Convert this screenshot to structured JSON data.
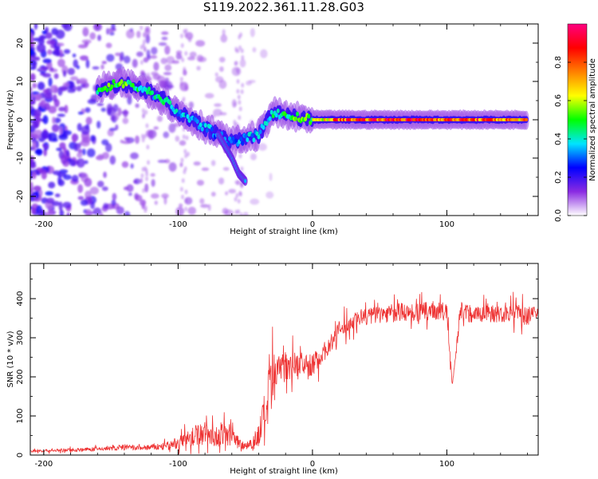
{
  "title": "S119.2022.361.11.28.G03",
  "chart_data": [
    {
      "type": "heatmap",
      "xlabel": "Height of straight line (km)",
      "ylabel": "Frequency (Hz)",
      "xlim": [
        -210,
        168
      ],
      "ylim": [
        -25,
        25
      ],
      "xticks": [
        -200,
        -100,
        0,
        100
      ],
      "yticks": [
        -20,
        -10,
        0,
        10,
        20
      ],
      "colorbar": {
        "label": "Normalized spectral amplitude",
        "range": [
          0,
          1
        ],
        "ticks": [
          0.0,
          0.2,
          0.4,
          0.6,
          0.8
        ],
        "tick_labels": [
          "0.0",
          "0.2",
          "0.4",
          "0.6",
          "0.8"
        ],
        "colormap": [
          "#ffffff",
          "#8a2be2",
          "#0000ff",
          "#00e5ff",
          "#00ff00",
          "#ffff00",
          "#ff8000",
          "#ff0000",
          "#ff0080"
        ]
      },
      "ridge": [
        {
          "x": -160,
          "y": 8,
          "amp": 0.45
        },
        {
          "x": -150,
          "y": 9,
          "amp": 0.5
        },
        {
          "x": -140,
          "y": 9.5,
          "amp": 0.5
        },
        {
          "x": -130,
          "y": 8.5,
          "amp": 0.45
        },
        {
          "x": -120,
          "y": 7,
          "amp": 0.4
        },
        {
          "x": -110,
          "y": 5,
          "amp": 0.4
        },
        {
          "x": -100,
          "y": 2,
          "amp": 0.35
        },
        {
          "x": -90,
          "y": 0,
          "amp": 0.35
        },
        {
          "x": -80,
          "y": -2,
          "amp": 0.35
        },
        {
          "x": -70,
          "y": -4,
          "amp": 0.3
        },
        {
          "x": -60,
          "y": -6,
          "amp": 0.3
        },
        {
          "x": -50,
          "y": -5,
          "amp": 0.35
        },
        {
          "x": -40,
          "y": -4,
          "amp": 0.35
        },
        {
          "x": -30,
          "y": 2,
          "amp": 0.4
        },
        {
          "x": -20,
          "y": 1,
          "amp": 0.45
        },
        {
          "x": -10,
          "y": 0.5,
          "amp": 0.5
        },
        {
          "x": 0,
          "y": 0,
          "amp": 0.55
        },
        {
          "x": 20,
          "y": 0,
          "amp": 0.8
        },
        {
          "x": 40,
          "y": 0,
          "amp": 0.85
        },
        {
          "x": 60,
          "y": 0,
          "amp": 0.85
        },
        {
          "x": 80,
          "y": 0,
          "amp": 0.85
        },
        {
          "x": 100,
          "y": 0,
          "amp": 0.8
        },
        {
          "x": 120,
          "y": 0,
          "amp": 0.8
        },
        {
          "x": 140,
          "y": 0,
          "amp": 0.75
        },
        {
          "x": 160,
          "y": 0,
          "amp": 0.7
        }
      ],
      "branch": [
        {
          "x": -70,
          "y": -4
        },
        {
          "x": -65,
          "y": -7
        },
        {
          "x": -60,
          "y": -10
        },
        {
          "x": -55,
          "y": -14
        },
        {
          "x": -50,
          "y": -16
        }
      ]
    },
    {
      "type": "line",
      "xlabel": "Height of straight line (km)",
      "ylabel": "SNR (10 * v/v)",
      "xlim": [
        -210,
        168
      ],
      "ylim": [
        0,
        490
      ],
      "xticks": [
        -200,
        -100,
        0,
        100
      ],
      "yticks": [
        0,
        100,
        200,
        300,
        400
      ],
      "color": "#ee3333",
      "x": [
        -210,
        -190,
        -170,
        -150,
        -140,
        -130,
        -120,
        -110,
        -100,
        -95,
        -90,
        -85,
        -80,
        -75,
        -70,
        -65,
        -60,
        -55,
        -50,
        -45,
        -40,
        -35,
        -30,
        -25,
        -20,
        -15,
        -10,
        -5,
        0,
        5,
        10,
        15,
        20,
        25,
        30,
        35,
        40,
        50,
        60,
        70,
        80,
        90,
        100,
        104,
        110,
        120,
        130,
        140,
        150,
        160,
        168
      ],
      "y": [
        10,
        12,
        14,
        17,
        20,
        18,
        20,
        22,
        30,
        40,
        45,
        55,
        55,
        50,
        45,
        55,
        50,
        30,
        25,
        30,
        50,
        110,
        170,
        220,
        240,
        230,
        235,
        230,
        230,
        250,
        270,
        290,
        320,
        330,
        340,
        350,
        355,
        360,
        365,
        365,
        365,
        370,
        365,
        175,
        370,
        360,
        365,
        360,
        365,
        355,
        360
      ],
      "noise": [
        4,
        5,
        6,
        7,
        10,
        8,
        10,
        12,
        20,
        25,
        30,
        35,
        40,
        35,
        30,
        40,
        35,
        20,
        15,
        25,
        40,
        80,
        100,
        70,
        60,
        45,
        40,
        35,
        35,
        35,
        30,
        30,
        30,
        30,
        30,
        30,
        30,
        30,
        30,
        30,
        30,
        30,
        30,
        10,
        30,
        30,
        30,
        30,
        30,
        30,
        30
      ]
    }
  ]
}
